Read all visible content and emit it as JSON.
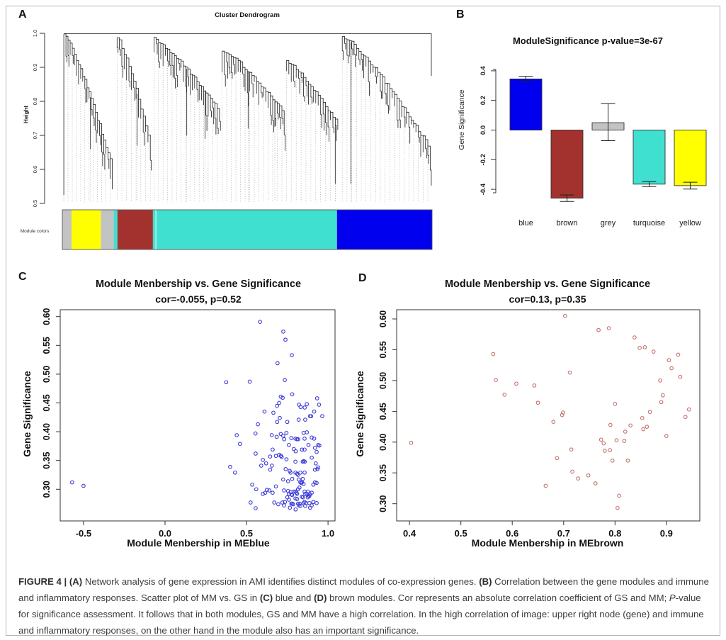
{
  "figure": {
    "panel_labels": {
      "a": "A",
      "b": "B",
      "c": "C",
      "d": "D"
    }
  },
  "colors": {
    "module_blue": "#0000EE",
    "module_brown": "#A3322E",
    "module_grey": "#C3C3C3",
    "module_turquoise": "#40E0D0",
    "module_yellow": "#FFFF00",
    "scatter_blue": "#3B3BD8",
    "scatter_brown": "#C4716B",
    "axis": "#222222",
    "guide": "#9a9a9a",
    "border": "#b4b4b4"
  },
  "caption": {
    "segments": [
      {
        "text": "FIGURE 4 | ",
        "bold": true,
        "italic": false
      },
      {
        "text": "(A)",
        "bold": true,
        "italic": false
      },
      {
        "text": " Network analysis of gene expression in AMI identifies distinct modules of co-expression genes. ",
        "bold": false,
        "italic": false
      },
      {
        "text": "(B)",
        "bold": true,
        "italic": false
      },
      {
        "text": " Correlation between the gene modules and immune and inflammatory responses. Scatter plot of MM vs. GS in ",
        "bold": false,
        "italic": false
      },
      {
        "text": "(C)",
        "bold": true,
        "italic": false
      },
      {
        "text": " blue and ",
        "bold": false,
        "italic": false
      },
      {
        "text": "(D)",
        "bold": true,
        "italic": false
      },
      {
        "text": " brown modules. Cor represents an absolute correlation coefficient of GS and MM; ",
        "bold": false,
        "italic": false
      },
      {
        "text": "P",
        "bold": false,
        "italic": true
      },
      {
        "text": "-value for significance assessment. It follows that in both modules, GS and MM have a high correlation. In the high correlation of image: upper right node (gene) and immune and inflammatory responses, on the other hand in the module also has an important significance.",
        "bold": false,
        "italic": false
      }
    ]
  },
  "chart_data": [
    {
      "type": "dendrogram",
      "panel": "A",
      "title": "Cluster Dendrogram",
      "ylabel": "Height",
      "ylim": [
        0.5,
        1.0
      ],
      "yticks": [
        "0.5",
        "0.6",
        "0.7",
        "0.8",
        "0.9",
        "1.0"
      ],
      "module_bar_label": "Module colors",
      "module_segments": [
        {
          "color": "grey",
          "hex": "#C3C3C3",
          "frac": 0.025
        },
        {
          "color": "yellow",
          "hex": "#FFFF00",
          "frac": 0.079
        },
        {
          "color": "grey",
          "hex": "#C3C3C3",
          "frac": 0.035
        },
        {
          "color": "turquoise",
          "hex": "#40E0D0",
          "frac": 0.01
        },
        {
          "color": "brown",
          "hex": "#A3322E",
          "frac": 0.096
        },
        {
          "color": "turquoise",
          "hex": "#40E0D0",
          "frac": 0.498
        },
        {
          "color": "blue",
          "hex": "#0000EE",
          "frac": 0.257
        }
      ],
      "hairline_frac": 0.253,
      "root_height": 0.999,
      "clusters": [
        {
          "x0": 0.004,
          "x1": 0.135,
          "top": 0.998,
          "end": 0.605,
          "leaves": 24,
          "deep": [
            {
              "at": 0.0,
              "to": 0.525
            },
            {
              "at": 0.55,
              "to": 0.66
            }
          ]
        },
        {
          "x0": 0.148,
          "x1": 0.238,
          "top": 0.988,
          "end": 0.675,
          "leaves": 15,
          "deep": [
            {
              "at": 0.6,
              "to": 0.67
            }
          ]
        },
        {
          "x0": 0.248,
          "x1": 0.425,
          "top": 0.984,
          "end": 0.775,
          "leaves": 30,
          "deep": [
            {
              "at": 0.5,
              "to": 0.7
            },
            {
              "at": 0.78,
              "to": 0.69
            }
          ]
        },
        {
          "x0": 0.432,
          "x1": 0.6,
          "top": 0.952,
          "end": 0.765,
          "leaves": 28,
          "deep": [
            {
              "at": 0.42,
              "to": 0.72
            },
            {
              "at": 0.85,
              "to": 0.725
            }
          ]
        },
        {
          "x0": 0.606,
          "x1": 0.745,
          "top": 0.922,
          "end": 0.732,
          "leaves": 22,
          "deep": [
            {
              "at": 0.95,
              "to": 0.558
            }
          ]
        },
        {
          "x0": 0.757,
          "x1": 0.995,
          "top": 0.992,
          "end": 0.662,
          "leaves": 38,
          "deep": [
            {
              "at": 0.1,
              "to": 0.558
            }
          ]
        }
      ]
    },
    {
      "type": "bar",
      "panel": "B",
      "title": "ModuleSignificance p-value=3e-67",
      "ylabel": "Gene Significance",
      "ylim": [
        -0.5,
        0.42
      ],
      "yticks": [
        "-0.4",
        "-0.2",
        "0.0",
        "0.2",
        "0.4"
      ],
      "categories": [
        "blue",
        "brown",
        "grey",
        "turquoise",
        "yellow"
      ],
      "values": [
        0.345,
        -0.46,
        0.05,
        -0.365,
        -0.375
      ],
      "error_low": [
        0.327,
        -0.482,
        -0.072,
        -0.382,
        -0.398
      ],
      "error_high": [
        0.363,
        -0.438,
        0.178,
        -0.348,
        -0.352
      ],
      "bar_colors": [
        "#0000EE",
        "#A3322E",
        "#C3C3C3",
        "#40E0D0",
        "#FFFF00"
      ]
    },
    {
      "type": "scatter",
      "panel": "C",
      "title": "Module Menbership vs. Gene Significance",
      "subtitle": "cor=-0.055, p=0.52",
      "xlabel": "Module Menbership in MEblue",
      "ylabel": "Gene Significance",
      "xlim": [
        -0.643,
        1.043
      ],
      "ylim": [
        0.245,
        0.612
      ],
      "xticks": [
        "-0.5",
        "0.0",
        "0.5",
        "1.0"
      ],
      "yticks": [
        "0.30",
        "0.35",
        "0.40",
        "0.45",
        "0.50",
        "0.55",
        "0.60"
      ],
      "point_color": "#3B3BD8",
      "points": [
        [
          -0.57,
          0.312
        ],
        [
          -0.5,
          0.306
        ],
        [
          0.375,
          0.486
        ],
        [
          0.52,
          0.487
        ],
        [
          0.583,
          0.591
        ],
        [
          0.69,
          0.519
        ],
        [
          0.726,
          0.574
        ],
        [
          0.739,
          0.56
        ],
        [
          0.778,
          0.533
        ],
        [
          0.735,
          0.49
        ],
        [
          0.78,
          0.465
        ],
        [
          0.71,
          0.461
        ],
        [
          0.722,
          0.459
        ],
        [
          0.933,
          0.458
        ],
        [
          0.945,
          0.447
        ],
        [
          0.57,
          0.413
        ],
        [
          0.61,
          0.435
        ],
        [
          0.665,
          0.433
        ],
        [
          0.687,
          0.445
        ],
        [
          0.7,
          0.45
        ],
        [
          0.704,
          0.424
        ],
        [
          0.822,
          0.447
        ],
        [
          0.832,
          0.443
        ],
        [
          0.857,
          0.442
        ],
        [
          0.87,
          0.448
        ],
        [
          0.89,
          0.427
        ],
        [
          0.896,
          0.427
        ],
        [
          0.965,
          0.427
        ],
        [
          0.82,
          0.421
        ],
        [
          0.86,
          0.421
        ],
        [
          0.688,
          0.417
        ],
        [
          0.75,
          0.417
        ],
        [
          0.915,
          0.435
        ],
        [
          0.46,
          0.379
        ],
        [
          0.44,
          0.394
        ],
        [
          0.555,
          0.397
        ],
        [
          0.655,
          0.394
        ],
        [
          0.685,
          0.391
        ],
        [
          0.71,
          0.396
        ],
        [
          0.725,
          0.393
        ],
        [
          0.731,
          0.387
        ],
        [
          0.745,
          0.398
        ],
        [
          0.775,
          0.389
        ],
        [
          0.8,
          0.388
        ],
        [
          0.81,
          0.387
        ],
        [
          0.816,
          0.387
        ],
        [
          0.85,
          0.398
        ],
        [
          0.856,
          0.388
        ],
        [
          0.87,
          0.399
        ],
        [
          0.9,
          0.39
        ],
        [
          0.915,
          0.388
        ],
        [
          0.94,
          0.377
        ],
        [
          0.947,
          0.376
        ],
        [
          0.88,
          0.377
        ],
        [
          0.76,
          0.377
        ],
        [
          0.79,
          0.37
        ],
        [
          0.84,
          0.369
        ],
        [
          0.856,
          0.369
        ],
        [
          0.92,
          0.372
        ],
        [
          0.93,
          0.365
        ],
        [
          0.802,
          0.366
        ],
        [
          0.66,
          0.369
        ],
        [
          0.556,
          0.362
        ],
        [
          0.6,
          0.351
        ],
        [
          0.62,
          0.345
        ],
        [
          0.645,
          0.357
        ],
        [
          0.68,
          0.358
        ],
        [
          0.7,
          0.36
        ],
        [
          0.711,
          0.358
        ],
        [
          0.716,
          0.356
        ],
        [
          0.745,
          0.352
        ],
        [
          0.8,
          0.348
        ],
        [
          0.845,
          0.348
        ],
        [
          0.851,
          0.349
        ],
        [
          0.857,
          0.348
        ],
        [
          0.9,
          0.355
        ],
        [
          0.925,
          0.345
        ],
        [
          0.94,
          0.338
        ],
        [
          0.4,
          0.339
        ],
        [
          0.43,
          0.329
        ],
        [
          0.59,
          0.341
        ],
        [
          0.645,
          0.334
        ],
        [
          0.656,
          0.341
        ],
        [
          0.74,
          0.335
        ],
        [
          0.765,
          0.332
        ],
        [
          0.77,
          0.329
        ],
        [
          0.8,
          0.329
        ],
        [
          0.81,
          0.327
        ],
        [
          0.816,
          0.325
        ],
        [
          0.83,
          0.329
        ],
        [
          0.856,
          0.329
        ],
        [
          0.92,
          0.334
        ],
        [
          0.935,
          0.335
        ],
        [
          0.535,
          0.308
        ],
        [
          0.56,
          0.3
        ],
        [
          0.615,
          0.294
        ],
        [
          0.625,
          0.299
        ],
        [
          0.64,
          0.298
        ],
        [
          0.66,
          0.294
        ],
        [
          0.68,
          0.305
        ],
        [
          0.73,
          0.298
        ],
        [
          0.755,
          0.297
        ],
        [
          0.76,
          0.292
        ],
        [
          0.77,
          0.295
        ],
        [
          0.776,
          0.291
        ],
        [
          0.78,
          0.29
        ],
        [
          0.79,
          0.296
        ],
        [
          0.8,
          0.296
        ],
        [
          0.806,
          0.294
        ],
        [
          0.81,
          0.292
        ],
        [
          0.816,
          0.3
        ],
        [
          0.825,
          0.303
        ],
        [
          0.83,
          0.312
        ],
        [
          0.836,
          0.311
        ],
        [
          0.84,
          0.312
        ],
        [
          0.85,
          0.309
        ],
        [
          0.856,
          0.296
        ],
        [
          0.86,
          0.292
        ],
        [
          0.87,
          0.292
        ],
        [
          0.876,
          0.296
        ],
        [
          0.885,
          0.288
        ],
        [
          0.89,
          0.291
        ],
        [
          0.9,
          0.294
        ],
        [
          0.91,
          0.308
        ],
        [
          0.92,
          0.312
        ],
        [
          0.93,
          0.311
        ],
        [
          0.845,
          0.318
        ],
        [
          0.78,
          0.318
        ],
        [
          0.755,
          0.314
        ],
        [
          0.725,
          0.317
        ],
        [
          0.82,
          0.317
        ],
        [
          0.525,
          0.277
        ],
        [
          0.556,
          0.267
        ],
        [
          0.6,
          0.292
        ],
        [
          0.67,
          0.277
        ],
        [
          0.695,
          0.274
        ],
        [
          0.72,
          0.277
        ],
        [
          0.73,
          0.272
        ],
        [
          0.736,
          0.278
        ],
        [
          0.75,
          0.286
        ],
        [
          0.76,
          0.282
        ],
        [
          0.775,
          0.275
        ],
        [
          0.781,
          0.275
        ],
        [
          0.786,
          0.274
        ],
        [
          0.8,
          0.284
        ],
        [
          0.81,
          0.283
        ],
        [
          0.816,
          0.275
        ],
        [
          0.82,
          0.272
        ],
        [
          0.826,
          0.275
        ],
        [
          0.83,
          0.271
        ],
        [
          0.84,
          0.287
        ],
        [
          0.846,
          0.286
        ],
        [
          0.85,
          0.276
        ],
        [
          0.856,
          0.278
        ],
        [
          0.86,
          0.271
        ],
        [
          0.866,
          0.276
        ],
        [
          0.876,
          0.286
        ],
        [
          0.88,
          0.289
        ],
        [
          0.886,
          0.276
        ],
        [
          0.89,
          0.268
        ],
        [
          0.9,
          0.272
        ],
        [
          0.91,
          0.278
        ],
        [
          0.93,
          0.276
        ],
        [
          0.766,
          0.268
        ],
        [
          0.801,
          0.265
        ]
      ]
    },
    {
      "type": "scatter",
      "panel": "D",
      "title": "Module Menbership vs. Gene Significance",
      "subtitle": "cor=0.13, p=0.35",
      "xlabel": "Module Menbership in MEbrown",
      "ylabel": "Gene Significance",
      "xlim": [
        0.375,
        0.965
      ],
      "ylim": [
        0.272,
        0.615
      ],
      "xticks": [
        "0.4",
        "0.5",
        "0.6",
        "0.7",
        "0.8",
        "0.9"
      ],
      "yticks": [
        "0.30",
        "0.35",
        "0.40",
        "0.45",
        "0.50",
        "0.55",
        "0.60"
      ],
      "point_color": "#C4716B",
      "points": [
        [
          0.403,
          0.399
        ],
        [
          0.563,
          0.543
        ],
        [
          0.568,
          0.501
        ],
        [
          0.585,
          0.477
        ],
        [
          0.608,
          0.495
        ],
        [
          0.643,
          0.492
        ],
        [
          0.65,
          0.464
        ],
        [
          0.665,
          0.329
        ],
        [
          0.68,
          0.433
        ],
        [
          0.687,
          0.374
        ],
        [
          0.697,
          0.444
        ],
        [
          0.699,
          0.448
        ],
        [
          0.703,
          0.605
        ],
        [
          0.712,
          0.513
        ],
        [
          0.715,
          0.388
        ],
        [
          0.717,
          0.352
        ],
        [
          0.728,
          0.341
        ],
        [
          0.748,
          0.346
        ],
        [
          0.762,
          0.333
        ],
        [
          0.768,
          0.582
        ],
        [
          0.773,
          0.404
        ],
        [
          0.778,
          0.398
        ],
        [
          0.78,
          0.386
        ],
        [
          0.788,
          0.585
        ],
        [
          0.79,
          0.387
        ],
        [
          0.791,
          0.428
        ],
        [
          0.795,
          0.37
        ],
        [
          0.8,
          0.462
        ],
        [
          0.803,
          0.403
        ],
        [
          0.805,
          0.293
        ],
        [
          0.808,
          0.313
        ],
        [
          0.818,
          0.402
        ],
        [
          0.82,
          0.417
        ],
        [
          0.825,
          0.37
        ],
        [
          0.83,
          0.427
        ],
        [
          0.838,
          0.57
        ],
        [
          0.848,
          0.553
        ],
        [
          0.853,
          0.439
        ],
        [
          0.855,
          0.421
        ],
        [
          0.858,
          0.554
        ],
        [
          0.862,
          0.425
        ],
        [
          0.868,
          0.449
        ],
        [
          0.875,
          0.547
        ],
        [
          0.888,
          0.5
        ],
        [
          0.89,
          0.465
        ],
        [
          0.893,
          0.476
        ],
        [
          0.9,
          0.41
        ],
        [
          0.905,
          0.533
        ],
        [
          0.91,
          0.52
        ],
        [
          0.923,
          0.542
        ],
        [
          0.927,
          0.506
        ],
        [
          0.937,
          0.441
        ],
        [
          0.944,
          0.453
        ]
      ]
    }
  ]
}
